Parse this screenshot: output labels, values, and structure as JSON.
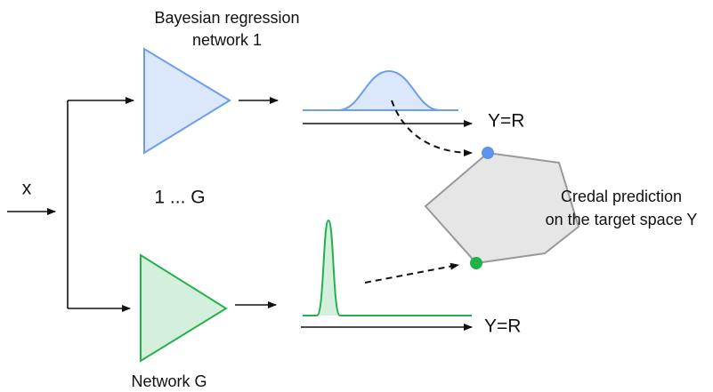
{
  "nodes": [
    {
      "label": [
        "Bayesian regression",
        "network 1"
      ]
    },
    {
      "label": "1 ... G"
    },
    {
      "label": "Network G"
    }
  ],
  "input": {
    "label": "x"
  },
  "axes": [
    {
      "label": "Y=R"
    },
    {
      "label": "Y=R"
    }
  ],
  "output": {
    "label": [
      "Credal prediction",
      "on the target space Y"
    ]
  }
}
